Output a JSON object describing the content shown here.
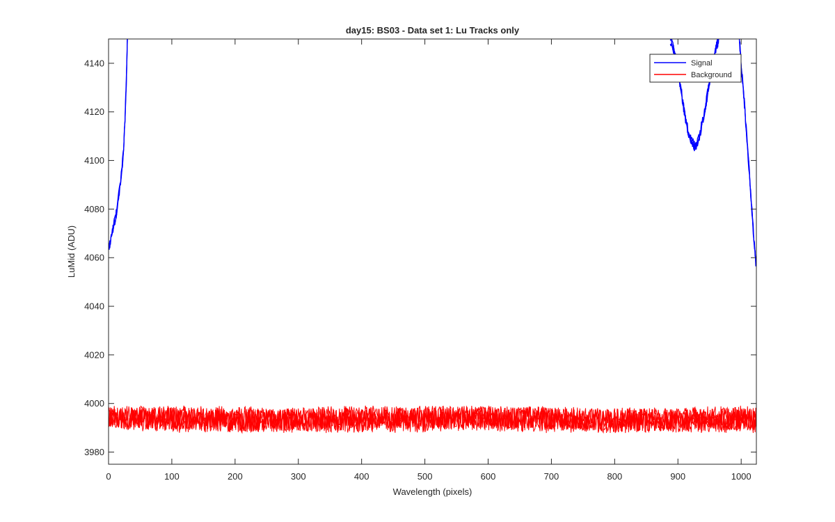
{
  "chart_data": {
    "type": "line",
    "title": "day15: BS03 - Data set 1: Lu Tracks only",
    "xlabel": "Wavelength (pixels)",
    "ylabel": "LuMid (ADU)",
    "xlim": [
      0,
      1024
    ],
    "ylim": [
      3975,
      4150
    ],
    "xticks": [
      "0",
      "100",
      "200",
      "300",
      "400",
      "500",
      "600",
      "700",
      "800",
      "900",
      "1000"
    ],
    "yticks": [
      "3980",
      "4000",
      "4020",
      "4040",
      "4060",
      "4080",
      "4100",
      "4120",
      "4140"
    ],
    "grid": false,
    "legend_position": "top-right",
    "series": [
      {
        "name": "Signal",
        "color": "#0000ff",
        "segments": [
          {
            "x": [
              0,
              3,
              6,
              9,
              12,
              15,
              18,
              21,
              24,
              26,
              28,
              29,
              30
            ],
            "y": [
              4064,
              4067,
              4070,
              4074,
              4078,
              4083,
              4089,
              4096,
              4106,
              4118,
              4132,
              4142,
              4150
            ]
          },
          {
            "x": [
              888,
              892,
              897,
              902,
              906,
              910,
              914,
              918,
              922,
              926,
              930,
              934,
              938,
              942,
              946,
              950,
              954,
              958,
              962,
              965
            ],
            "y": [
              4150,
              4147,
              4141,
              4134,
              4127,
              4120,
              4115,
              4110,
              4108,
              4106,
              4107,
              4110,
              4115,
              4120,
              4126,
              4132,
              4139,
              4144,
              4148,
              4150
            ]
          },
          {
            "x": [
              997,
              1000,
              1004,
              1008,
              1012,
              1016,
              1020,
              1024
            ],
            "y": [
              4150,
              4140,
              4127,
              4113,
              4098,
              4083,
              4068,
              4055
            ]
          }
        ]
      },
      {
        "name": "Background",
        "color": "#ff0000",
        "mean": 3993.5,
        "band_min": 3987,
        "band_max": 4000
      }
    ]
  }
}
